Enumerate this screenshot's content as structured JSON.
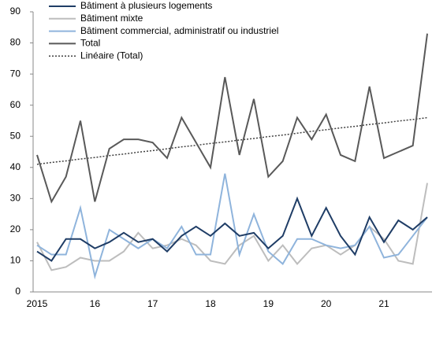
{
  "chart_data": {
    "type": "line",
    "categories": [
      "2015",
      null,
      null,
      null,
      "16",
      null,
      null,
      null,
      "17",
      null,
      null,
      null,
      "18",
      null,
      null,
      null,
      "19",
      null,
      null,
      null,
      "20",
      null,
      null,
      null,
      "21",
      null,
      null,
      null
    ],
    "series": [
      {
        "name": "Bâtiment à plusieurs logements",
        "color": "#1f3d66",
        "style": "solid",
        "values": [
          13,
          10,
          17,
          17,
          14,
          16,
          19,
          16,
          17,
          13,
          18,
          21,
          18,
          22,
          18,
          19,
          14,
          18,
          30,
          18,
          27,
          18,
          12,
          24,
          16,
          23,
          20,
          24
        ]
      },
      {
        "name": "Bâtiment mixte",
        "color": "#bdbdbd",
        "style": "solid",
        "values": [
          16,
          7,
          8,
          11,
          10,
          10,
          13,
          19,
          14,
          15,
          17,
          15,
          10,
          9,
          15,
          18,
          10,
          15,
          9,
          14,
          15,
          12,
          15,
          21,
          17,
          10,
          9,
          35
        ]
      },
      {
        "name": "Bâtiment commercial, administratif  ou industriel",
        "color": "#8fb4dc",
        "style": "solid",
        "values": [
          15,
          12,
          12,
          27,
          5,
          20,
          17,
          14,
          17,
          14,
          21,
          12,
          12,
          38,
          12,
          25,
          13,
          9,
          17,
          17,
          15,
          14,
          15,
          21,
          11,
          12,
          18,
          24
        ]
      },
      {
        "name": "Total",
        "color": "#595959",
        "style": "solid",
        "values": [
          44,
          29,
          37,
          55,
          29,
          46,
          49,
          49,
          48,
          43,
          56,
          48,
          40,
          69,
          44,
          62,
          37,
          42,
          56,
          49,
          57,
          44,
          42,
          66,
          43,
          45,
          47,
          83
        ]
      },
      {
        "name": "Linéaire (Total)",
        "color": "#404040",
        "style": "dotted",
        "values": [
          41.0,
          41.6,
          42.1,
          42.7,
          43.2,
          43.8,
          44.3,
          44.9,
          45.4,
          46.0,
          46.6,
          47.1,
          47.7,
          48.2,
          48.8,
          49.3,
          49.9,
          50.4,
          51.0,
          51.6,
          52.1,
          52.7,
          53.2,
          53.8,
          54.3,
          54.9,
          55.4,
          56.0
        ]
      }
    ],
    "ylim": [
      0,
      90
    ],
    "yticks": [
      0,
      10,
      20,
      30,
      40,
      50,
      60,
      70,
      80,
      90
    ],
    "grid": false,
    "legend": "top-left"
  }
}
